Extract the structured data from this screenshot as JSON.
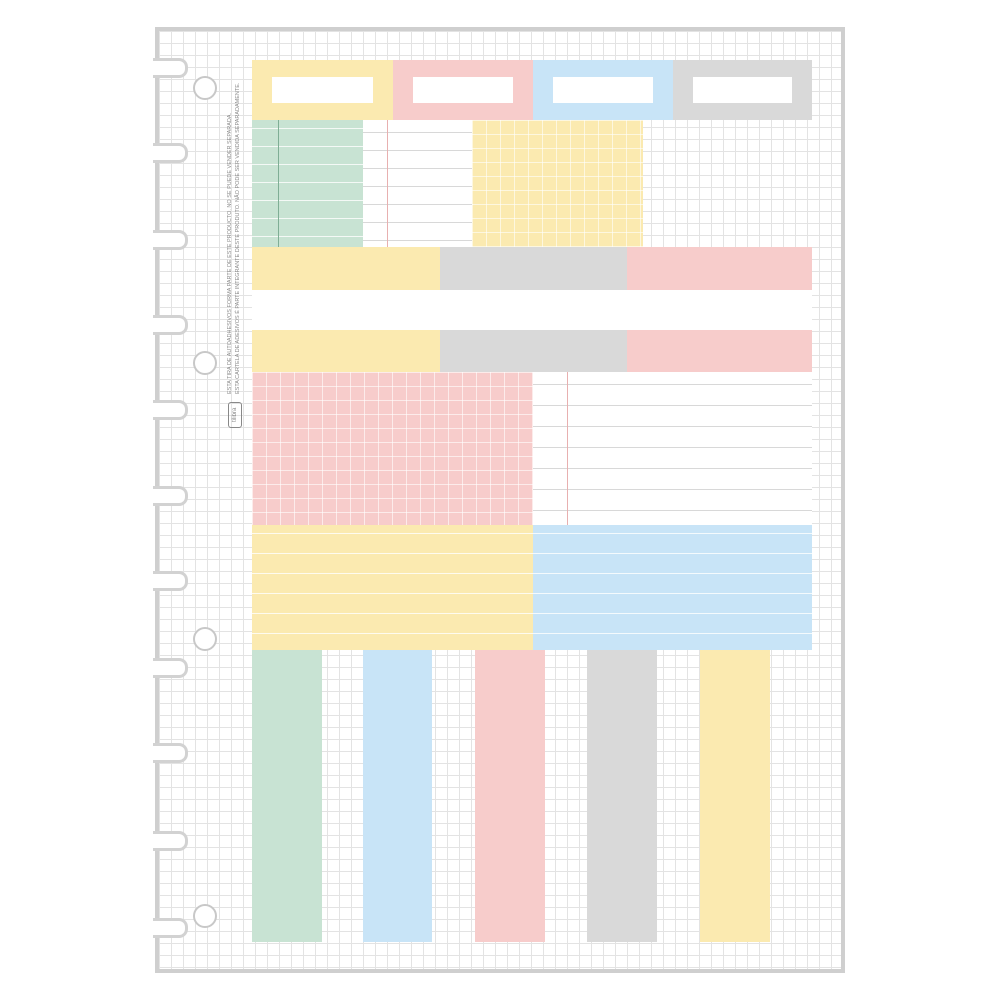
{
  "colors": {
    "yellow": "#fbeab0",
    "pink": "#f7cccb",
    "blue": "#c8e4f7",
    "gray": "#d9d9d9",
    "green": "#c8e3d3"
  },
  "notice": {
    "line1": "ESTA CARTELA DE ADESIVOS É PARTE INTEGRANTE DESTE PRODUTO. NÃO PODE SER VENDIDA SEPARADAMENTE.",
    "line2": "ESTA TIRA DE AUTOADHESIVOS FORMA PARTE DE ESTE PRODUCTO. NO SE PUEDE VENDER SEPARADA."
  },
  "brand": "tilibra"
}
